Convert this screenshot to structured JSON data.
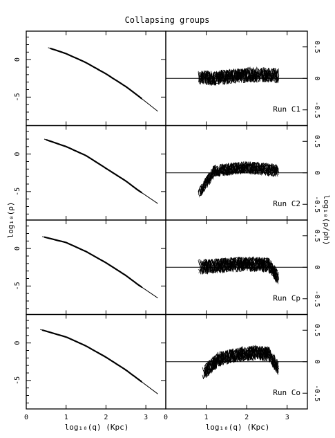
{
  "chart_data": {
    "type": "line",
    "title": "Collapsing groups",
    "xlabel": "log₁₀(q) (Kpc)",
    "xlim": [
      0,
      3.5
    ],
    "x_ticks": [
      "0",
      "1",
      "2",
      "3"
    ],
    "left_panels": {
      "ylabel": "log₁₀(ρ)",
      "ylim": [
        -8.8,
        3.8
      ],
      "y_ticks": [
        "0",
        "-5"
      ],
      "y_tick_values": [
        0,
        -5
      ]
    },
    "right_panels": {
      "ylabel": "log₁₀(ρ/ρh)",
      "ylim": [
        -0.75,
        0.75
      ],
      "y_ticks": [
        "0.5",
        "0",
        "-0.5"
      ],
      "y_tick_values": [
        0.5,
        0,
        -0.5
      ],
      "reference_line": 0
    },
    "runs": [
      {
        "name": "Run C1",
        "profile": {
          "x": [
            0.55,
            1.0,
            1.5,
            2.0,
            2.5,
            2.8,
            3.3
          ],
          "y": [
            1.6,
            0.8,
            -0.4,
            -1.9,
            -3.6,
            -4.8,
            -6.9
          ]
        },
        "residual": {
          "x_start": 0.8,
          "x_end": 2.8,
          "peak_x": 2.3,
          "amp": 0.06,
          "spread": 0.12
        }
      },
      {
        "name": "Run C2",
        "profile": {
          "x": [
            0.45,
            1.0,
            1.5,
            2.0,
            2.5,
            2.8,
            3.3
          ],
          "y": [
            2.0,
            1.0,
            -0.2,
            -1.9,
            -3.6,
            -4.8,
            -6.6
          ]
        },
        "residual": {
          "x_start": 0.8,
          "x_end": 2.8,
          "peak_x": 2.0,
          "amp": 0.08,
          "spread": 0.1,
          "dip_start": -0.35
        }
      },
      {
        "name": "Run Cp",
        "profile": {
          "x": [
            0.4,
            1.0,
            1.5,
            2.0,
            2.5,
            2.8,
            3.3
          ],
          "y": [
            1.6,
            0.8,
            -0.4,
            -1.9,
            -3.6,
            -4.8,
            -6.6
          ]
        },
        "residual": {
          "x_start": 0.8,
          "x_end": 2.8,
          "peak_x": 2.0,
          "amp": 0.05,
          "spread": 0.12,
          "dip_end": -0.2
        }
      },
      {
        "name": "Run Co",
        "profile": {
          "x": [
            0.35,
            1.0,
            1.5,
            2.0,
            2.5,
            2.8,
            3.3
          ],
          "y": [
            1.8,
            0.8,
            -0.4,
            -1.9,
            -3.6,
            -4.8,
            -6.8
          ]
        },
        "residual": {
          "x_start": 0.9,
          "x_end": 2.8,
          "peak_x": 2.2,
          "amp": 0.14,
          "spread": 0.12,
          "dip_start": -0.2,
          "dip_end": -0.2
        }
      }
    ]
  }
}
